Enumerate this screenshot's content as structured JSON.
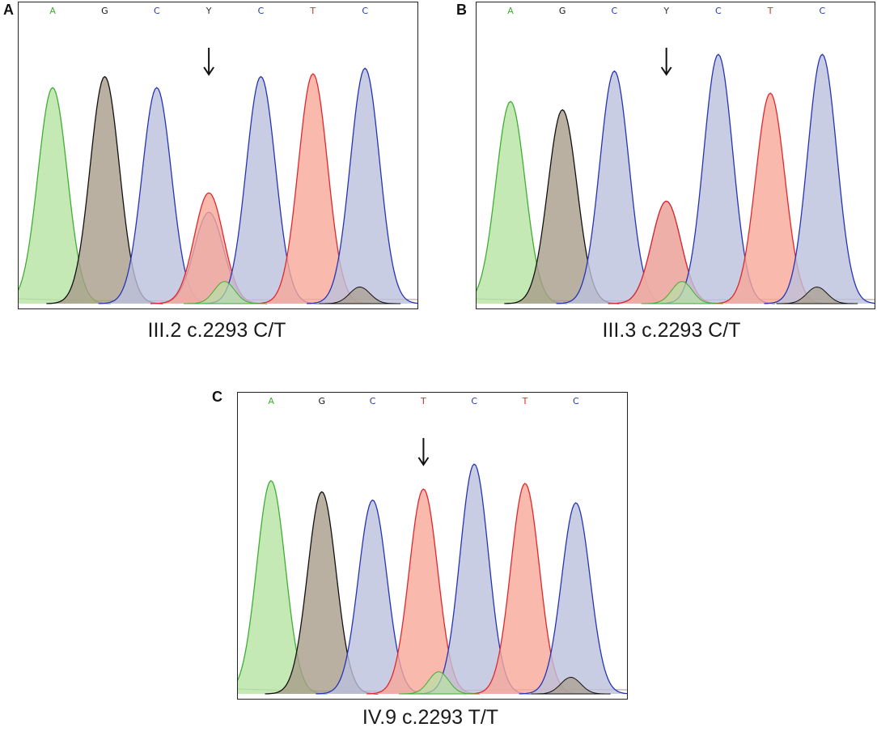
{
  "chart_data": [
    {
      "type": "chromatogram",
      "panel": "A",
      "caption": "III.2 c.2293 C/T",
      "bases": [
        "A",
        "G",
        "C",
        "Y",
        "C",
        "T",
        "C"
      ],
      "arrow_index": 3,
      "peaks": [
        {
          "base": "A",
          "pos": 0,
          "height": 0.78,
          "channel": "A"
        },
        {
          "base": "G",
          "pos": 1,
          "height": 0.82,
          "channel": "G"
        },
        {
          "base": "C",
          "pos": 2,
          "height": 0.78,
          "channel": "C"
        },
        {
          "base": "Y",
          "pos": 3,
          "height": 0.33,
          "channel": "C"
        },
        {
          "base": "Y",
          "pos": 3,
          "height": 0.4,
          "channel": "T"
        },
        {
          "base": "C",
          "pos": 4,
          "height": 0.82,
          "channel": "C"
        },
        {
          "base": "T",
          "pos": 5,
          "height": 0.83,
          "channel": "T"
        },
        {
          "base": "C",
          "pos": 6,
          "height": 0.85,
          "channel": "C"
        }
      ]
    },
    {
      "type": "chromatogram",
      "panel": "B",
      "caption": "III.3 c.2293 C/T",
      "bases": [
        "A",
        "G",
        "C",
        "Y",
        "C",
        "T",
        "C"
      ],
      "arrow_index": 3,
      "peaks": [
        {
          "base": "A",
          "pos": 0,
          "height": 0.73,
          "channel": "A"
        },
        {
          "base": "G",
          "pos": 1,
          "height": 0.7,
          "channel": "G"
        },
        {
          "base": "C",
          "pos": 2,
          "height": 0.84,
          "channel": "C"
        },
        {
          "base": "Y",
          "pos": 3,
          "height": 0.37,
          "channel": "C"
        },
        {
          "base": "Y",
          "pos": 3,
          "height": 0.37,
          "channel": "T"
        },
        {
          "base": "C",
          "pos": 4,
          "height": 0.9,
          "channel": "C"
        },
        {
          "base": "T",
          "pos": 5,
          "height": 0.76,
          "channel": "T"
        },
        {
          "base": "C",
          "pos": 6,
          "height": 0.9,
          "channel": "C"
        }
      ]
    },
    {
      "type": "chromatogram",
      "panel": "C",
      "caption": "IV.9 c.2293 T/T",
      "bases": [
        "A",
        "G",
        "C",
        "T",
        "C",
        "T",
        "C"
      ],
      "arrow_index": 3,
      "peaks": [
        {
          "base": "A",
          "pos": 0,
          "height": 0.77,
          "channel": "A"
        },
        {
          "base": "G",
          "pos": 1,
          "height": 0.73,
          "channel": "G"
        },
        {
          "base": "C",
          "pos": 2,
          "height": 0.7,
          "channel": "C"
        },
        {
          "base": "T",
          "pos": 3,
          "height": 0.74,
          "channel": "T"
        },
        {
          "base": "C",
          "pos": 4,
          "height": 0.83,
          "channel": "C"
        },
        {
          "base": "T",
          "pos": 5,
          "height": 0.76,
          "channel": "T"
        },
        {
          "base": "C",
          "pos": 6,
          "height": 0.69,
          "channel": "C"
        }
      ]
    }
  ],
  "colors": {
    "A_fill": "#b5e3a3",
    "A_line": "#3fae32",
    "G_fill": "#a89c8a",
    "G_line": "#111111",
    "C_fill": "#bcc0dc",
    "C_line": "#2634b4",
    "T_fill": "#f7a898",
    "T_line": "#e0282c",
    "Y_label": "#333333"
  }
}
